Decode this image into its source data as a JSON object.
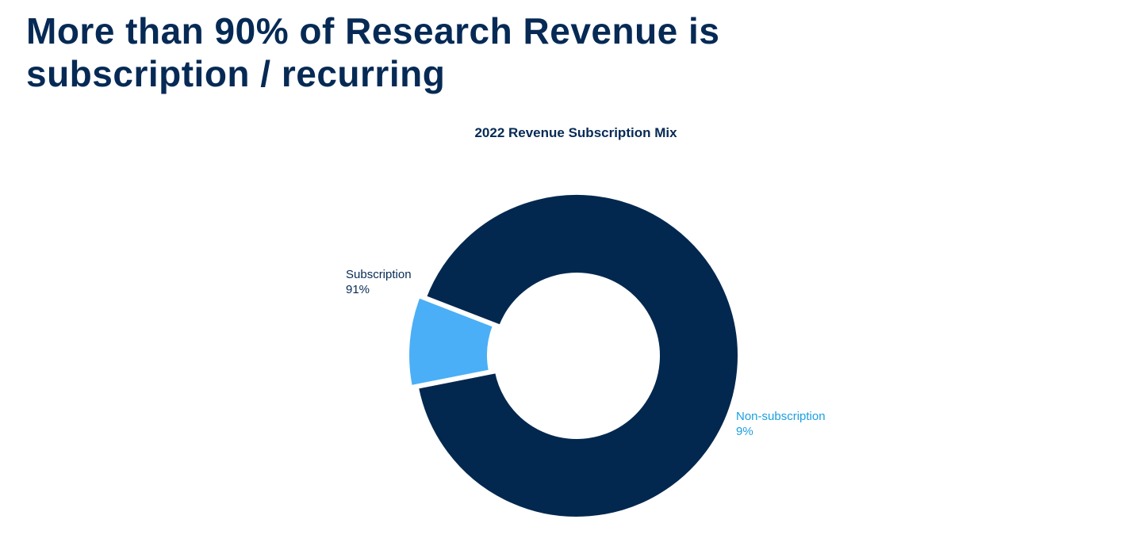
{
  "page": {
    "headline_line1": "More than 90% of Research Revenue is",
    "headline_line2": "subscription / recurring"
  },
  "colors": {
    "navy": "#03284f",
    "light_blue": "#4aaff6",
    "label_blue": "#1a9fe0",
    "heading": "#062a55"
  },
  "chart_data": {
    "type": "pie",
    "variant": "donut",
    "title": "2022 Revenue Subscription Mix",
    "slices": [
      {
        "label": "Subscription",
        "value": 91,
        "display": "91%",
        "color": "#03284f",
        "label_color": "#062a55"
      },
      {
        "label": "Non-subscription",
        "value": 9,
        "display": "9%",
        "color": "#4aaff6",
        "label_color": "#1a9fe0",
        "exploded": true
      }
    ],
    "legend": "none"
  }
}
